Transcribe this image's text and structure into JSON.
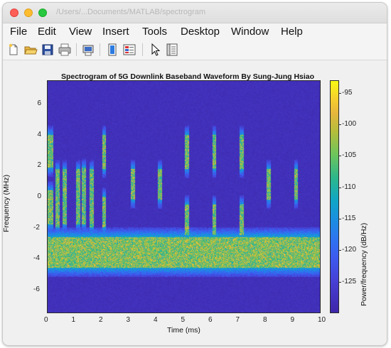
{
  "window": {
    "title": "/Users/...Documents/MATLAB/spectrogram"
  },
  "menu": [
    "File",
    "Edit",
    "View",
    "Insert",
    "Tools",
    "Desktop",
    "Window",
    "Help"
  ],
  "toolbar": [
    "new-figure-icon",
    "open-file-icon",
    "save-icon",
    "print-icon",
    "print-preview-icon",
    "link-plot-icon",
    "insert-colorbar-icon",
    "pointer-icon",
    "property-editor-icon"
  ],
  "chart_data": {
    "type": "heatmap",
    "title": "Spectrogram of 5G Downlink Baseband Waveform By Sung-Jung Hsiao",
    "xlabel": "Time (ms)",
    "ylabel": "Frequency (MHz)",
    "colorbar_label": "Power/frequency (dB/Hz)",
    "xlim": [
      0,
      10
    ],
    "ylim": [
      -7.5,
      7.5
    ],
    "xticks": [
      "0",
      "1",
      "2",
      "3",
      "4",
      "5",
      "6",
      "7",
      "8",
      "9",
      "10"
    ],
    "yticks": [
      "6",
      "4",
      "2",
      "0",
      "-2",
      "-4",
      "-6"
    ],
    "clim": [
      -130,
      -93
    ],
    "cticks": [
      "-95",
      "-100",
      "-105",
      "-110",
      "-115",
      "-120",
      "-125"
    ],
    "background_level": -128,
    "bands": [
      {
        "t0": 0.0,
        "t1": 10.0,
        "f0": -4.6,
        "f1": -2.6,
        "level": -96
      },
      {
        "t0": 0.0,
        "t1": 0.2,
        "f0": 1.9,
        "f1": 4.0,
        "level": -97
      },
      {
        "t0": 0.0,
        "t1": 0.2,
        "f0": -1.8,
        "f1": 0.4,
        "level": -97
      },
      {
        "t0": 0.3,
        "t1": 0.45,
        "f0": -2.0,
        "f1": 1.8,
        "level": -98
      },
      {
        "t0": 0.55,
        "t1": 0.7,
        "f0": -1.8,
        "f1": 1.8,
        "level": -98
      },
      {
        "t0": 1.05,
        "t1": 1.2,
        "f0": -1.8,
        "f1": 1.8,
        "level": -98
      },
      {
        "t0": 1.25,
        "t1": 1.4,
        "f0": -1.8,
        "f1": 1.9,
        "level": -98
      },
      {
        "t0": 1.55,
        "t1": 1.7,
        "f0": -2.0,
        "f1": 1.8,
        "level": -98
      },
      {
        "t0": 2.0,
        "t1": 2.15,
        "f0": 1.8,
        "f1": 4.0,
        "level": -97
      },
      {
        "t0": 2.0,
        "t1": 2.15,
        "f0": -2.0,
        "f1": 0.0,
        "level": -97
      },
      {
        "t0": 3.05,
        "t1": 3.2,
        "f0": -0.2,
        "f1": 1.8,
        "level": -97
      },
      {
        "t0": 4.05,
        "t1": 4.2,
        "f0": -0.2,
        "f1": 1.8,
        "level": -97
      },
      {
        "t0": 5.05,
        "t1": 5.2,
        "f0": 1.8,
        "f1": 4.0,
        "level": -97
      },
      {
        "t0": 5.05,
        "t1": 5.2,
        "f0": -2.5,
        "f1": -0.5,
        "level": -97
      },
      {
        "t0": 6.05,
        "t1": 6.2,
        "f0": 1.8,
        "f1": 4.0,
        "level": -97
      },
      {
        "t0": 6.05,
        "t1": 6.2,
        "f0": -2.5,
        "f1": -0.5,
        "level": -97
      },
      {
        "t0": 7.05,
        "t1": 7.2,
        "f0": 1.8,
        "f1": 4.0,
        "level": -97
      },
      {
        "t0": 7.05,
        "t1": 7.2,
        "f0": -2.5,
        "f1": -0.5,
        "level": -97
      },
      {
        "t0": 8.05,
        "t1": 8.2,
        "f0": -0.2,
        "f1": 1.8,
        "level": -97
      },
      {
        "t0": 9.05,
        "t1": 9.2,
        "f0": -0.2,
        "f1": 1.8,
        "level": -97
      }
    ]
  }
}
